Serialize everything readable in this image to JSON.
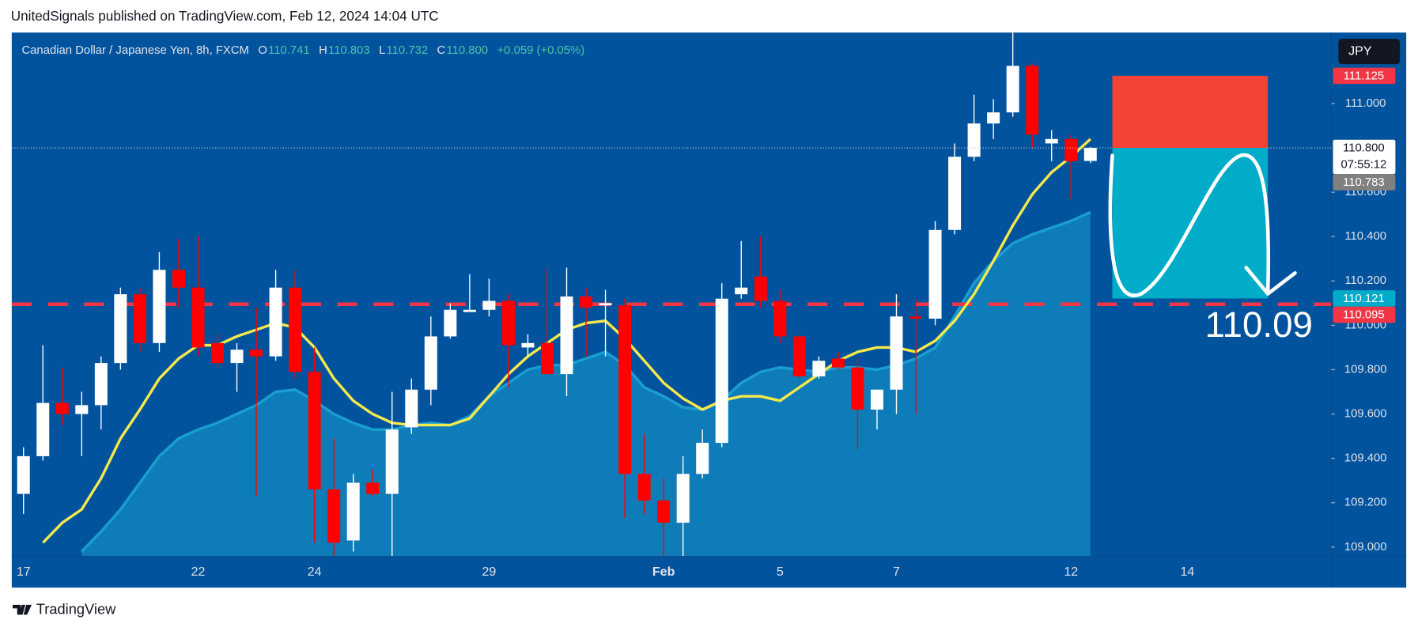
{
  "header": {
    "title": "UnitedSignals published on TradingView.com, Feb 12, 2024 14:04 UTC"
  },
  "footer": {
    "brand": "TradingView"
  },
  "chart_data": {
    "type": "candlestick",
    "symbol": "Canadian Dollar / Japanese Yen, 8h, FXCM",
    "ohlc_legend": [
      {
        "key": "O",
        "value": "110.741"
      },
      {
        "key": "H",
        "value": "110.803"
      },
      {
        "key": "L",
        "value": "110.732"
      },
      {
        "key": "C",
        "value": "110.800"
      }
    ],
    "change": "+0.059 (+0.05%)",
    "currency": "JPY",
    "categories": [
      "17",
      null,
      null,
      null,
      null,
      null,
      null,
      null,
      null,
      "22",
      null,
      null,
      null,
      null,
      null,
      "24",
      null,
      null,
      null,
      null,
      null,
      null,
      null,
      null,
      "29",
      null,
      null,
      null,
      null,
      null,
      null,
      null,
      null,
      "Feb",
      null,
      null,
      null,
      null,
      null,
      "5",
      null,
      null,
      null,
      null,
      null,
      "7",
      null,
      null,
      null,
      null,
      null,
      null,
      null,
      null,
      "12",
      null,
      null,
      null,
      null,
      null,
      "14"
    ],
    "open": [
      109.24,
      109.41,
      109.65,
      109.6,
      109.64,
      109.83,
      110.14,
      109.92,
      110.25,
      110.17,
      109.92,
      109.83,
      109.89,
      109.86,
      110.17,
      109.79,
      109.26,
      109.03,
      109.29,
      109.24,
      109.54,
      109.71,
      109.95,
      110.06,
      110.07,
      110.11,
      109.9,
      109.92,
      109.78,
      110.13,
      110.09,
      110.09,
      109.33,
      109.21,
      109.11,
      109.33,
      109.47,
      110.14,
      110.22,
      110.11,
      109.95,
      109.77,
      109.85,
      109.81,
      109.62,
      109.71,
      110.04,
      110.03,
      110.43,
      110.76,
      110.91,
      110.96,
      111.17,
      110.82,
      110.84,
      110.741,
      null,
      null,
      null,
      null,
      null
    ],
    "high": [
      109.45,
      109.91,
      109.81,
      109.7,
      109.86,
      110.17,
      110.17,
      110.33,
      110.39,
      110.4,
      109.96,
      109.92,
      110.08,
      110.25,
      110.25,
      109.9,
      109.49,
      109.33,
      109.35,
      109.7,
      109.76,
      110.04,
      110.1,
      110.23,
      110.21,
      110.14,
      109.96,
      110.26,
      110.26,
      110.17,
      110.16,
      110.12,
      109.51,
      109.31,
      109.41,
      109.53,
      110.19,
      110.38,
      110.4,
      110.16,
      109.96,
      109.86,
      109.88,
      109.86,
      109.71,
      110.14,
      110.12,
      110.47,
      110.82,
      111.04,
      111.02,
      111.32,
      111.18,
      110.88,
      110.86,
      110.803,
      null,
      null,
      null,
      null,
      null
    ],
    "low": [
      109.15,
      109.39,
      109.55,
      109.41,
      109.53,
      109.8,
      109.88,
      109.88,
      110.08,
      109.86,
      109.81,
      109.7,
      109.23,
      109.84,
      109.76,
      109.02,
      108.96,
      108.98,
      109.23,
      108.96,
      109.51,
      109.64,
      109.94,
      110.06,
      110.04,
      109.72,
      109.86,
      109.78,
      109.68,
      109.86,
      109.86,
      109.13,
      109.15,
      108.96,
      108.96,
      109.31,
      109.45,
      110.12,
      110.08,
      109.92,
      109.76,
      109.76,
      109.8,
      109.44,
      109.53,
      109.6,
      109.6,
      110.0,
      110.41,
      110.74,
      110.84,
      110.94,
      110.8,
      110.74,
      110.57,
      110.732,
      null,
      null,
      null,
      null,
      null
    ],
    "close": [
      109.41,
      109.65,
      109.6,
      109.64,
      109.83,
      110.14,
      109.92,
      110.25,
      110.17,
      109.9,
      109.83,
      109.89,
      109.86,
      110.17,
      109.79,
      109.26,
      109.02,
      109.29,
      109.24,
      109.53,
      109.71,
      109.95,
      110.07,
      110.07,
      110.11,
      109.91,
      109.92,
      109.78,
      110.13,
      110.08,
      110.1,
      109.33,
      109.21,
      109.11,
      109.33,
      109.47,
      110.12,
      110.17,
      110.11,
      109.95,
      109.77,
      109.84,
      109.81,
      109.62,
      109.71,
      110.04,
      110.03,
      110.43,
      110.76,
      110.91,
      110.96,
      111.17,
      110.86,
      110.84,
      110.74,
      110.8,
      null,
      null,
      null,
      null,
      null
    ],
    "up_color": "#ffffff",
    "down_color": "#ff0000",
    "series": [
      {
        "style": "area",
        "color": "#1a9ed0",
        "values": [
          null,
          null,
          null,
          108.98,
          109.07,
          109.17,
          109.29,
          109.41,
          109.49,
          109.53,
          109.56,
          109.6,
          109.64,
          109.7,
          109.71,
          109.66,
          109.6,
          109.56,
          109.53,
          109.53,
          109.55,
          109.56,
          109.55,
          109.59,
          109.68,
          109.74,
          109.8,
          109.82,
          109.82,
          109.85,
          109.88,
          109.82,
          109.72,
          109.68,
          109.63,
          109.62,
          109.66,
          109.74,
          109.79,
          109.81,
          109.8,
          109.79,
          109.81,
          109.81,
          109.8,
          109.82,
          109.85,
          109.9,
          110.04,
          110.19,
          110.29,
          110.37,
          110.41,
          110.44,
          110.47,
          110.51,
          null,
          null,
          null,
          null,
          null
        ]
      },
      {
        "style": "line",
        "color": "#f5e84b",
        "values": [
          null,
          109.02,
          109.11,
          109.17,
          109.31,
          109.49,
          109.62,
          109.76,
          109.85,
          109.91,
          109.91,
          109.95,
          109.98,
          110.01,
          109.99,
          109.9,
          109.76,
          109.66,
          109.6,
          109.56,
          109.55,
          109.55,
          109.55,
          109.58,
          109.68,
          109.78,
          109.86,
          109.92,
          109.98,
          110.01,
          110.02,
          109.94,
          109.84,
          109.74,
          109.67,
          109.62,
          109.66,
          109.68,
          109.68,
          109.66,
          109.72,
          109.78,
          109.84,
          109.88,
          109.9,
          109.9,
          109.88,
          109.93,
          110.02,
          110.14,
          110.29,
          110.45,
          110.59,
          110.69,
          110.76,
          110.84,
          null,
          null,
          null,
          null,
          null
        ]
      }
    ],
    "ylim": [
      108.96,
      111.32
    ],
    "yticks": [
      {
        "value": 109,
        "label": "109.000"
      },
      {
        "value": 109.2,
        "label": "109.200"
      },
      {
        "value": 109.4,
        "label": "109.400"
      },
      {
        "value": 109.6,
        "label": "109.600"
      },
      {
        "value": 109.8,
        "label": "109.800"
      },
      {
        "value": 110,
        "label": "110.000"
      },
      {
        "value": 110.2,
        "label": "110.200"
      },
      {
        "value": 110.4,
        "label": "110.400"
      },
      {
        "value": 110.6,
        "label": "110.600"
      },
      {
        "value": 111,
        "label": "111.000"
      }
    ],
    "horizontal_line": {
      "value": 110.095,
      "color": "#f23645"
    },
    "position": {
      "stop": 111.125,
      "entry": 110.8,
      "target": 110.121,
      "stop_color": "#f44336",
      "target_color": "#00acc8"
    },
    "price_labels": [
      {
        "value": 111.125,
        "label": "111.125",
        "color": "#f23645"
      },
      {
        "value": 110.8,
        "label": "110.800",
        "sub": "07:55:12",
        "color": "#ffffff"
      },
      {
        "value": 110.783,
        "label": "110.783",
        "color": "#808080"
      },
      {
        "value": 110.121,
        "label": "110.121",
        "color": "#00acc8"
      },
      {
        "value": 110.095,
        "label": "110.095",
        "color": "#f23645"
      }
    ],
    "annotations": [
      {
        "text": "110.09"
      }
    ]
  }
}
